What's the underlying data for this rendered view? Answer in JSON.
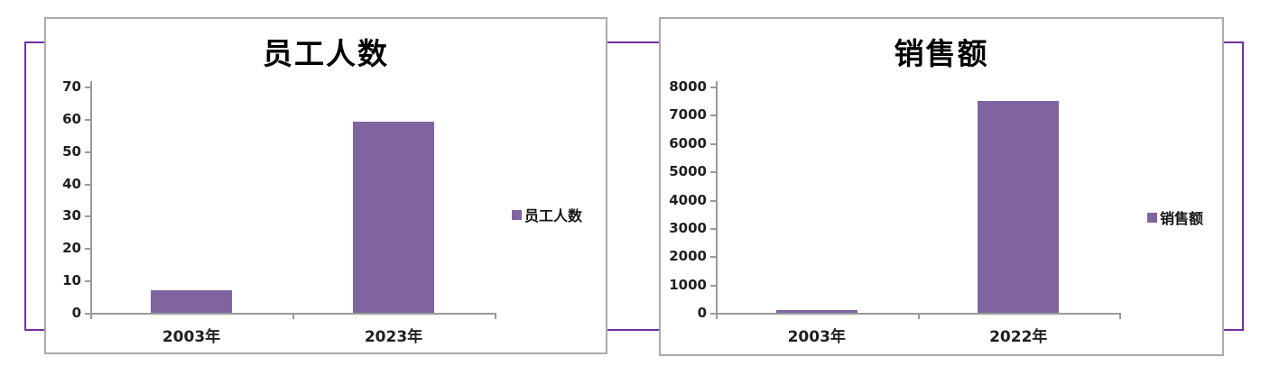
{
  "accent_purple": "#8064A2",
  "frame_color": "#7030A0",
  "card_border_color": "#ABABAB",
  "axis_color": "#9A9A9A",
  "chart_data": [
    {
      "type": "bar",
      "title": "员工人数",
      "categories": [
        "2003年",
        "2023年"
      ],
      "values": [
        7,
        59
      ],
      "legend": [
        "员工人数"
      ],
      "legend_position": "right",
      "xlabel": "",
      "ylabel": "",
      "ylim": [
        0,
        70
      ],
      "yticks": [
        0,
        10,
        20,
        30,
        40,
        50,
        60,
        70
      ],
      "grid": false,
      "bar_color": "#8064A2"
    },
    {
      "type": "bar",
      "title": "销售额",
      "categories": [
        "2003年",
        "2022年"
      ],
      "values": [
        100,
        7500
      ],
      "legend": [
        "销售额"
      ],
      "legend_position": "right",
      "xlabel": "",
      "ylabel": "",
      "ylim": [
        0,
        8000
      ],
      "yticks": [
        0,
        1000,
        2000,
        3000,
        4000,
        5000,
        6000,
        7000,
        8000
      ],
      "grid": false,
      "bar_color": "#8064A2"
    }
  ]
}
